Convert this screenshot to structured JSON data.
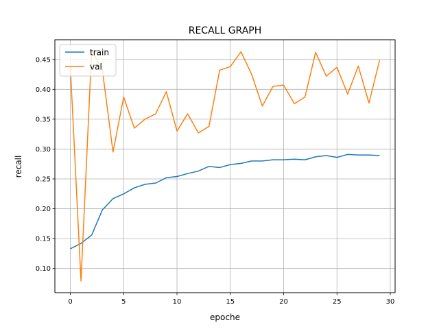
{
  "chart_data": {
    "type": "line",
    "title": "RECALL GRAPH",
    "xlabel": "epoche",
    "ylabel": "recall",
    "xlim": [
      -1.45,
      30.45
    ],
    "ylim": [
      0.0595,
      0.483
    ],
    "xticks": [
      0,
      5,
      10,
      15,
      20,
      25,
      30
    ],
    "xtick_labels": [
      "0",
      "5",
      "10",
      "15",
      "20",
      "25",
      "30"
    ],
    "yticks": [
      0.1,
      0.15,
      0.2,
      0.25,
      0.3,
      0.35,
      0.4,
      0.45
    ],
    "ytick_labels": [
      "0.10",
      "0.15",
      "0.20",
      "0.25",
      "0.30",
      "0.35",
      "0.40",
      "0.45"
    ],
    "grid": true,
    "legend_position": "top-left",
    "x": [
      0,
      1,
      2,
      3,
      4,
      5,
      6,
      7,
      8,
      9,
      10,
      11,
      12,
      13,
      14,
      15,
      16,
      17,
      18,
      19,
      20,
      21,
      22,
      23,
      24,
      25,
      26,
      27,
      28,
      29
    ],
    "series": [
      {
        "name": "train",
        "color": "#1f77b4",
        "values": [
          0.133,
          0.142,
          0.156,
          0.198,
          0.217,
          0.225,
          0.235,
          0.241,
          0.243,
          0.252,
          0.254,
          0.259,
          0.263,
          0.271,
          0.269,
          0.274,
          0.276,
          0.28,
          0.28,
          0.282,
          0.282,
          0.283,
          0.282,
          0.287,
          0.289,
          0.286,
          0.291,
          0.29,
          0.29,
          0.289
        ]
      },
      {
        "name": "val",
        "color": "#ff7f0e",
        "values": [
          0.438,
          0.079,
          0.465,
          0.433,
          0.295,
          0.387,
          0.335,
          0.35,
          0.359,
          0.396,
          0.33,
          0.359,
          0.327,
          0.338,
          0.432,
          0.438,
          0.463,
          0.425,
          0.372,
          0.405,
          0.407,
          0.376,
          0.387,
          0.462,
          0.422,
          0.437,
          0.392,
          0.439,
          0.377,
          0.449
        ]
      }
    ]
  }
}
